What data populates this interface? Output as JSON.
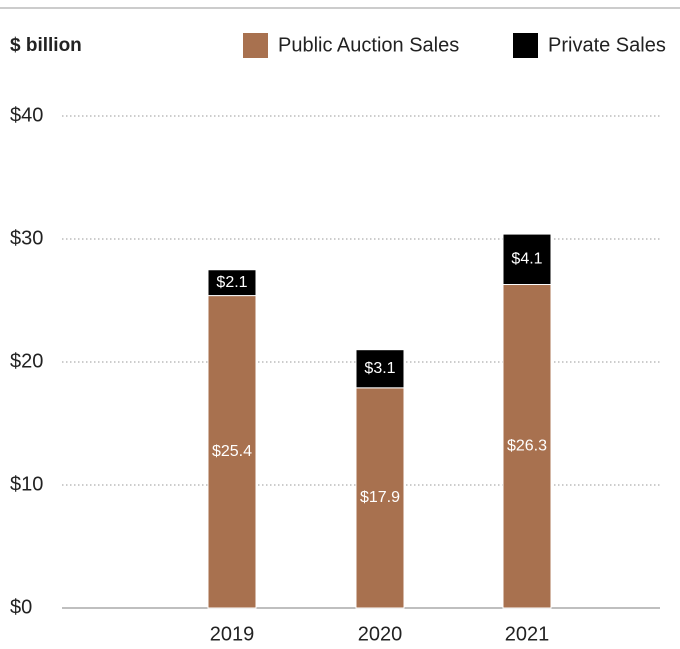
{
  "chart_data": {
    "type": "stacked_bar",
    "y_axis_label": "$ billion",
    "categories": [
      "2019",
      "2020",
      "2021"
    ],
    "series": [
      {
        "name": "Public Auction Sales",
        "color": "#a8714f",
        "values": [
          25.4,
          17.9,
          26.3
        ],
        "value_labels": [
          "$25.4",
          "$17.9",
          "$26.3"
        ]
      },
      {
        "name": "Private Sales",
        "color": "#000000",
        "values": [
          2.1,
          3.1,
          4.1
        ],
        "value_labels": [
          "$2.1",
          "$3.1",
          "$4.1"
        ]
      }
    ],
    "ylim": [
      0,
      40
    ],
    "yticks": [
      {
        "value": 0,
        "label": "$0"
      },
      {
        "value": 10,
        "label": "$10"
      },
      {
        "value": 20,
        "label": "$20"
      },
      {
        "value": 30,
        "label": "$30"
      },
      {
        "value": 40,
        "label": "$40"
      }
    ],
    "grid": true
  }
}
